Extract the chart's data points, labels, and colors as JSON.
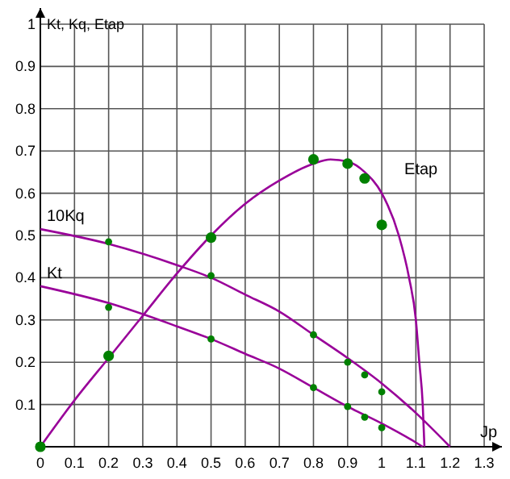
{
  "chart_data": {
    "type": "line",
    "xlabel": "Jp",
    "ylabel": "Kt, Kq, Etap",
    "xlim": [
      0,
      1.3
    ],
    "ylim": [
      0,
      1
    ],
    "xticks": [
      0,
      0.1,
      0.2,
      0.3,
      0.4,
      0.5,
      0.6,
      0.7,
      0.8,
      0.9,
      1,
      1.1,
      1.2,
      1.3
    ],
    "yticks": [
      {
        "value": 0,
        "label": null
      },
      0.1,
      0.2,
      0.3,
      0.4,
      0.5,
      0.6,
      0.7,
      0.8,
      0.9,
      1
    ],
    "grid": true,
    "series": [
      {
        "name": "10Kq",
        "color": "#990099",
        "x": [
          0,
          0.2,
          0.4,
          0.5,
          0.6,
          0.7,
          0.8,
          0.9,
          1.0,
          1.1,
          1.2
        ],
        "values": [
          0.515,
          0.48,
          0.43,
          0.4,
          0.36,
          0.32,
          0.265,
          0.21,
          0.15,
          0.08,
          0
        ]
      },
      {
        "name": "Kt",
        "color": "#990099",
        "x": [
          0,
          0.2,
          0.4,
          0.5,
          0.6,
          0.7,
          0.8,
          0.9,
          1.0,
          1.1,
          1.12
        ],
        "values": [
          0.38,
          0.34,
          0.285,
          0.255,
          0.22,
          0.185,
          0.14,
          0.095,
          0.055,
          0.01,
          0
        ]
      },
      {
        "name": "Etap",
        "color": "#990099",
        "x": [
          0,
          0.1,
          0.2,
          0.3,
          0.4,
          0.5,
          0.6,
          0.7,
          0.8,
          0.85,
          0.9,
          0.95,
          1.0,
          1.05,
          1.08,
          1.1,
          1.11,
          1.12,
          1.125
        ],
        "values": [
          0,
          0.11,
          0.21,
          0.31,
          0.41,
          0.5,
          0.575,
          0.63,
          0.67,
          0.68,
          0.675,
          0.65,
          0.6,
          0.5,
          0.4,
          0.3,
          0.2,
          0.1,
          0
        ]
      },
      {
        "type": "scatter",
        "color": "#008000",
        "marker": "circle",
        "x": [
          0.2,
          0.5,
          0.8,
          0.9,
          0.95,
          1.0
        ],
        "values": [
          0.485,
          0.405,
          0.265,
          0.2,
          0.17,
          0.13
        ]
      },
      {
        "type": "scatter",
        "color": "#008000",
        "marker": "circle",
        "x": [
          0.2,
          0.5,
          0.8,
          0.9,
          0.95,
          1.0
        ],
        "values": [
          0.33,
          0.255,
          0.14,
          0.095,
          0.07,
          0.045
        ]
      },
      {
        "type": "scatter",
        "color": "#008000",
        "marker": "circle",
        "x": [
          0,
          0.2,
          0.5,
          0.8,
          0.9,
          0.95,
          1.0
        ],
        "values": [
          0,
          0.215,
          0.495,
          0.68,
          0.67,
          0.635,
          0.525
        ]
      }
    ]
  }
}
